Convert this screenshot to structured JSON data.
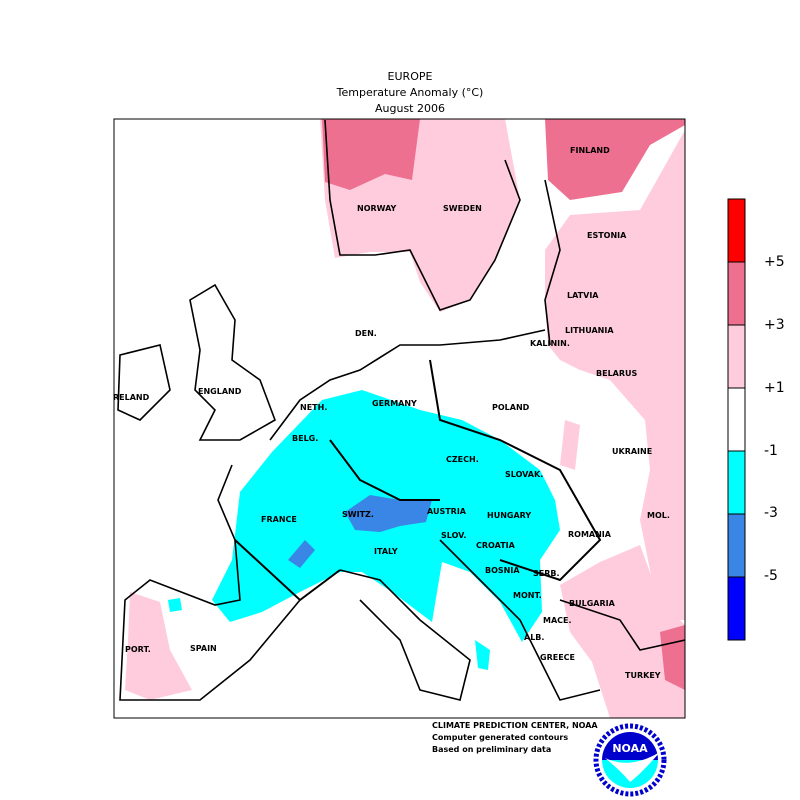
{
  "header": {
    "region": "EUROPE",
    "variable": "Temperature Anomaly (°C)",
    "period": "August 2006"
  },
  "colors": {
    "gt5": "#ff0000",
    "3to5": "#ee7090",
    "1to3": "#ffccdd",
    "neutral": "#ffffff",
    "m1to3": "#00ffff",
    "m3to5": "#3a86e6",
    "ltm5": "#0000ff"
  },
  "legend": {
    "labels": [
      "+5",
      "+3",
      "+1",
      "-1",
      "-3",
      "-5"
    ]
  },
  "countries": [
    "NORWAY",
    "SWEDEN",
    "FINLAND",
    "ESTONIA",
    "LATVIA",
    "LITHUANIA",
    "DEN.",
    "KALININ.",
    "IRELAND",
    "ENGLAND",
    "NETH.",
    "GERMANY",
    "POLAND",
    "BELARUS",
    "BELG.",
    "CZECH.",
    "SLOVAK.",
    "UKRAINE",
    "FRANCE",
    "SWITZ.",
    "AUSTRIA",
    "HUNGARY",
    "MOL.",
    "SLOV.",
    "CROATIA",
    "ROMANIA",
    "ITALY",
    "BOSNIA",
    "SERB.",
    "MONT.",
    "BULGARIA",
    "MACE.",
    "ALB.",
    "PORT.",
    "SPAIN",
    "GREECE",
    "TURKEY"
  ],
  "credits": {
    "line1": "CLIMATE PREDICTION CENTER, NOAA",
    "line2": "Computer generated contours",
    "line3": "Based on preliminary data",
    "logo": "NOAA"
  }
}
